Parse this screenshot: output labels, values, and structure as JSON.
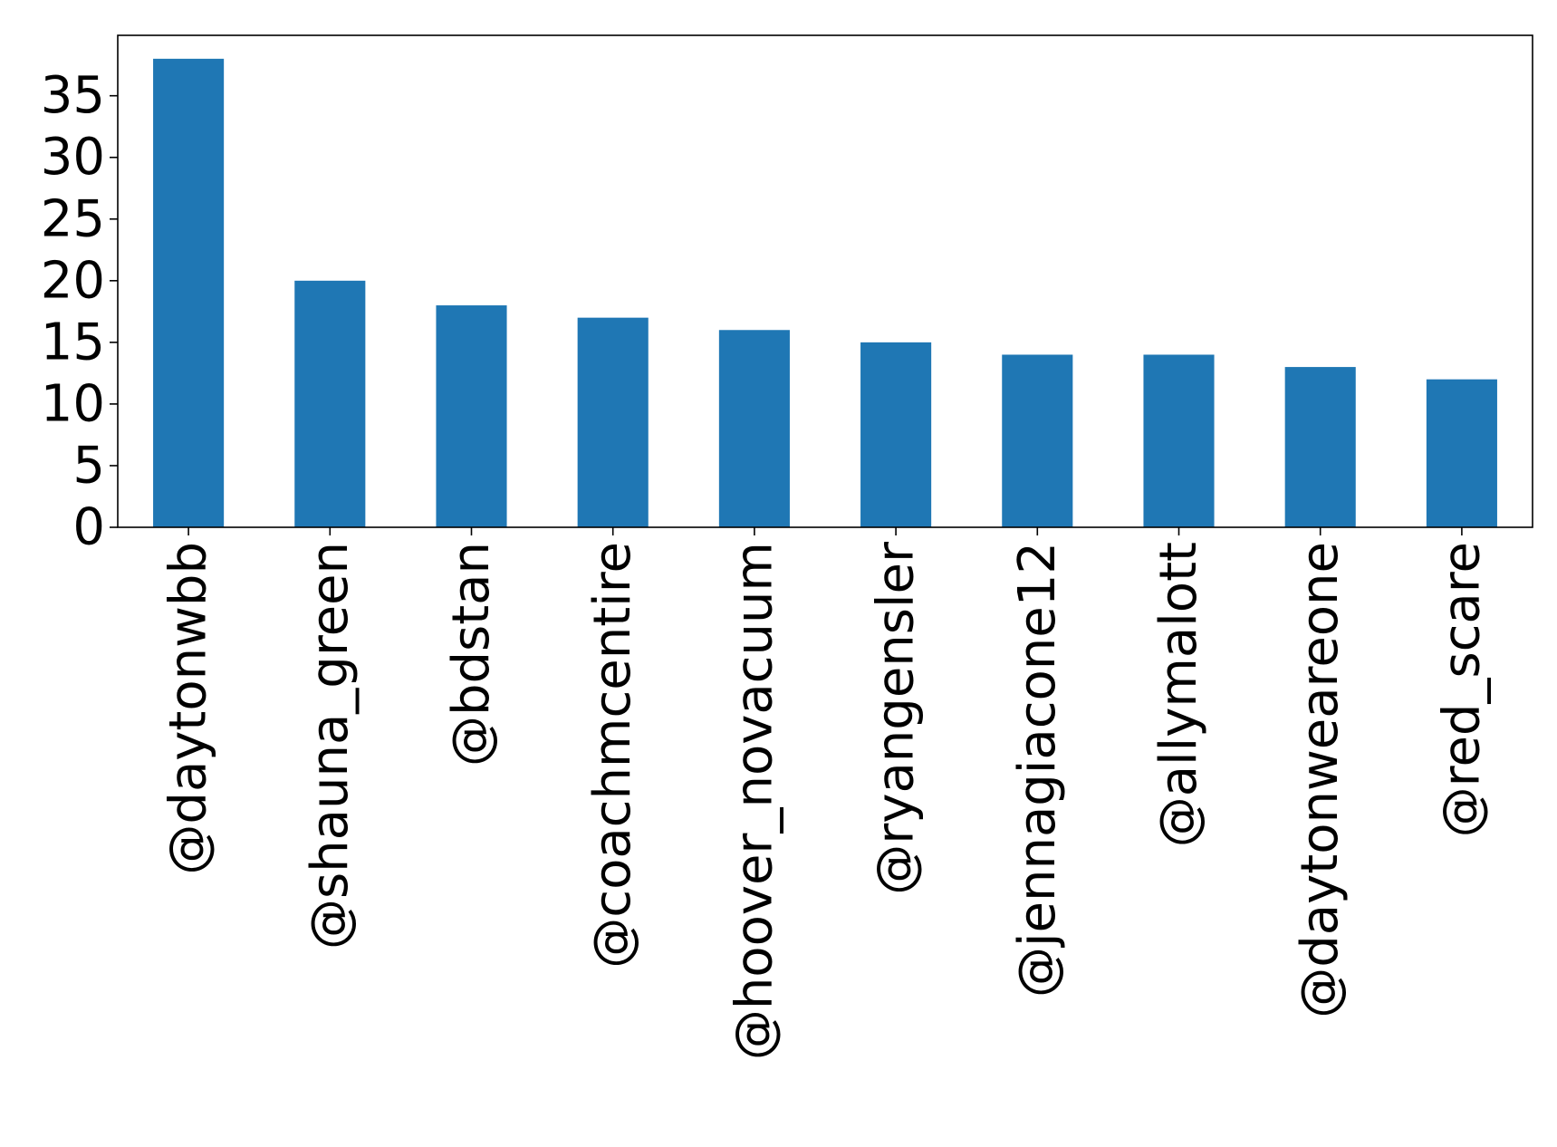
{
  "chart_data": {
    "type": "bar",
    "title": "",
    "xlabel": "",
    "ylabel": "",
    "categories": [
      "@daytonwbb",
      "@shauna_green",
      "@bdstan",
      "@coachmcentire",
      "@hoover_novacuum",
      "@ryangensler",
      "@jennagiacone12",
      "@allymalott",
      "@daytonweareone",
      "@red_scare"
    ],
    "values": [
      38,
      20,
      18,
      17,
      16,
      15,
      14,
      14,
      13,
      12
    ],
    "ylim": [
      0,
      39.9
    ],
    "yticks": [
      0,
      5,
      10,
      15,
      20,
      25,
      30,
      35
    ],
    "grid": false,
    "legend": "none",
    "bar_color": "#1f77b4"
  }
}
